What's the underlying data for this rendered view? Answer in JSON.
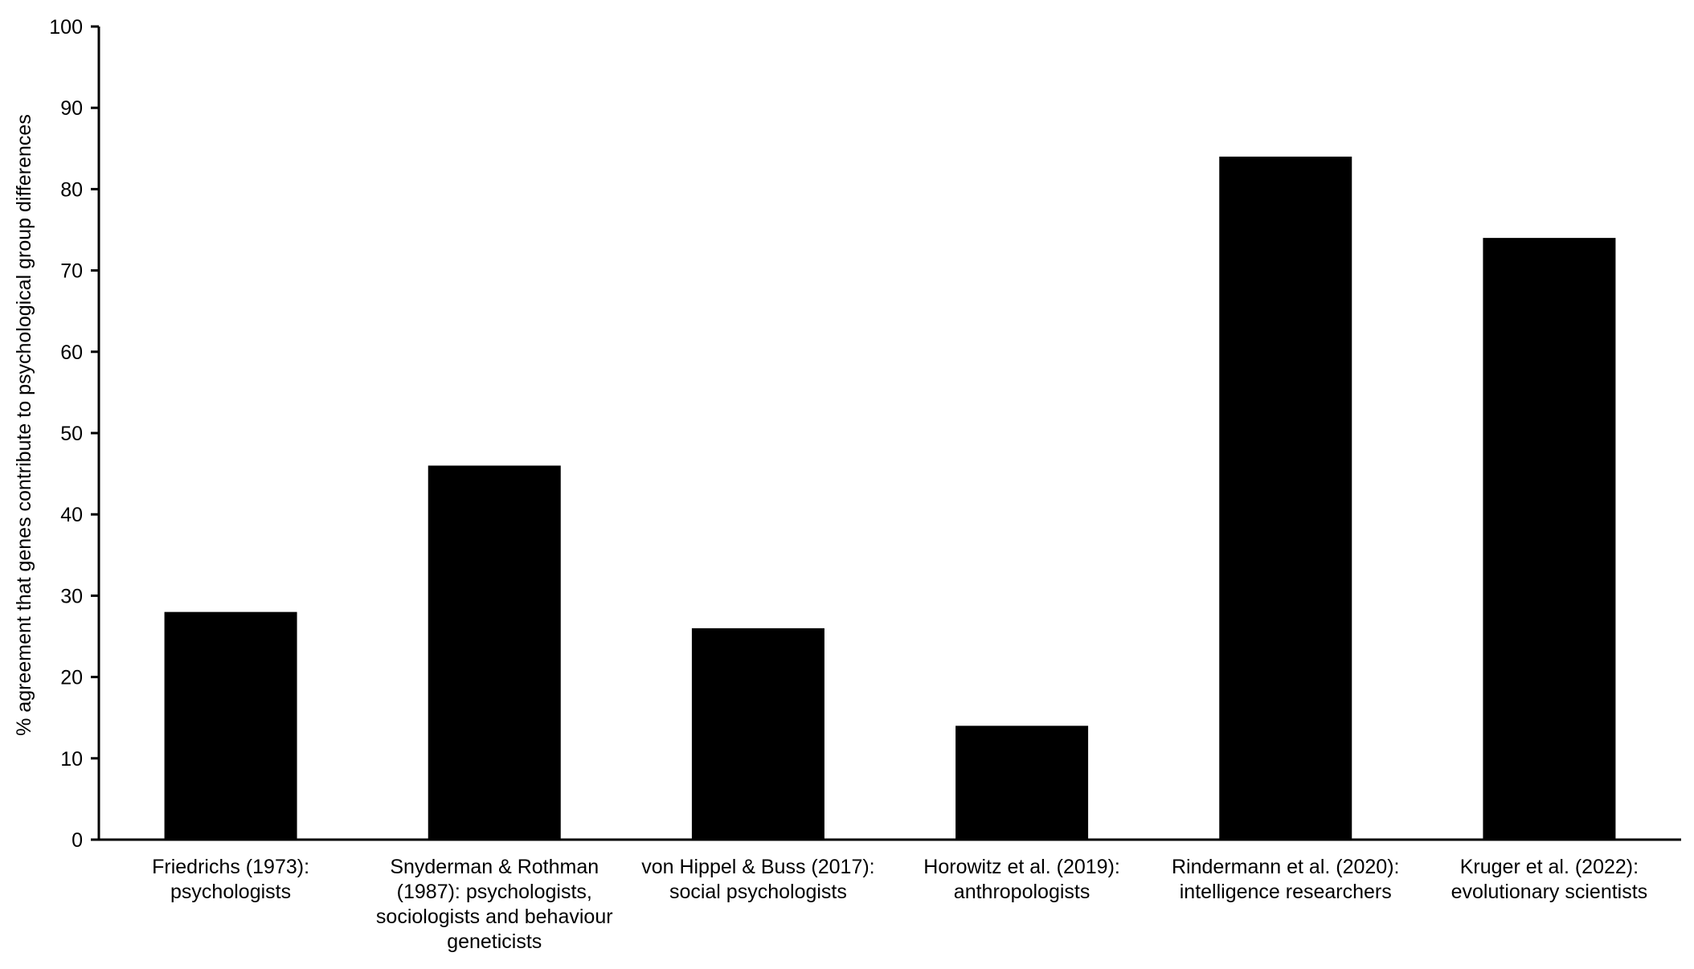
{
  "chart_data": {
    "type": "bar",
    "title": "",
    "xlabel": "",
    "ylabel": "% agreement that genes contribute to psychological group differences",
    "ylim": [
      0,
      100
    ],
    "yticks": [
      0,
      10,
      20,
      30,
      40,
      50,
      60,
      70,
      80,
      90,
      100
    ],
    "grid": false,
    "bar_color": "#000000",
    "categories": [
      [
        "Friedrichs (1973):",
        "psychologists"
      ],
      [
        "Snyderman & Rothman",
        "(1987): psychologists,",
        "sociologists and behaviour",
        "geneticists"
      ],
      [
        "von Hippel & Buss (2017):",
        "social psychologists"
      ],
      [
        "Horowitz et al. (2019):",
        "anthropologists"
      ],
      [
        "Rindermann et al. (2020):",
        "intelligence researchers"
      ],
      [
        "Kruger et al. (2022):",
        "evolutionary scientists"
      ]
    ],
    "values": [
      28,
      46,
      26,
      14,
      84,
      74
    ]
  }
}
